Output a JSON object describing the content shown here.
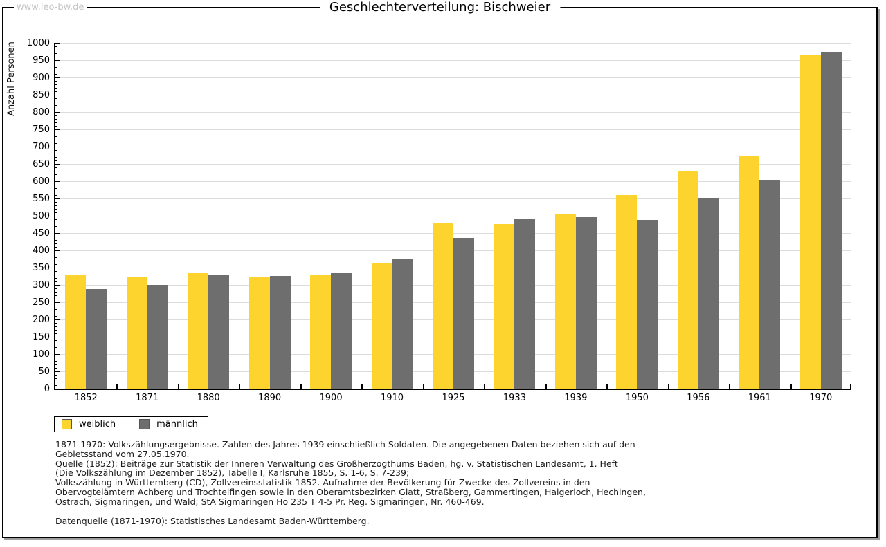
{
  "watermark": "www.leo-bw.de",
  "title": "Geschlechterverteilung: Bischweier",
  "chart_data": {
    "type": "bar",
    "title": "Geschlechterverteilung: Bischweier",
    "xlabel": "",
    "ylabel": "Anzahl Personen",
    "ylim": [
      0,
      1000
    ],
    "y_major_step": 50,
    "y_minor_step": 10,
    "grid": true,
    "legend_position": "bottom-left",
    "categories": [
      "1852",
      "1871",
      "1880",
      "1890",
      "1900",
      "1910",
      "1925",
      "1933",
      "1939",
      "1950",
      "1956",
      "1961",
      "1970"
    ],
    "series": [
      {
        "name": "weiblich",
        "color": "#FDD42E",
        "values": [
          327,
          321,
          333,
          321,
          327,
          361,
          477,
          475,
          504,
          559,
          627,
          671,
          966
        ]
      },
      {
        "name": "männlich",
        "color": "#6E6E6E",
        "values": [
          287,
          300,
          330,
          326,
          334,
          375,
          436,
          490,
          496,
          488,
          550,
          604,
          974
        ]
      }
    ]
  },
  "footer": {
    "lines": [
      "1871-1970: Volkszählungsergebnisse. Zahlen des Jahres 1939 einschließlich Soldaten. Die angegebenen Daten beziehen sich auf den",
      "Gebietsstand vom 27.05.1970.",
      "Quelle (1852): Beiträge zur Statistik der Inneren Verwaltung des Großherzogthums Baden, hg. v. Statistischen Landesamt, 1. Heft",
      "(Die Volkszählung im Dezember 1852), Tabelle I, Karlsruhe 1855, S. 1-6, S. 7-239;",
      "Volkszählung in Württemberg (CD), Zollvereinsstatistik 1852. Aufnahme der Bevölkerung für Zwecke des Zollvereins in den",
      "Obervogteiämtern Achberg und Trochtelfingen sowie in den Oberamtsbezirken Glatt, Straßberg, Gammertingen, Haigerloch, Hechingen,",
      "Ostrach, Sigmaringen, und Wald; StA Sigmaringen Ho 235 T 4-5 Pr. Reg. Sigmaringen, Nr. 460-469."
    ],
    "datasource": "Datenquelle (1871-1970): Statistisches Landesamt Baden-Württemberg."
  },
  "colors": {
    "frame_border": "#000000",
    "frame_shadow": "#9e9e9e",
    "gridline": "#dcdcdc",
    "watermark": "#c4c4c4",
    "bar_weiblich": "#FDD42E",
    "bar_maennlich": "#6E6E6E"
  }
}
